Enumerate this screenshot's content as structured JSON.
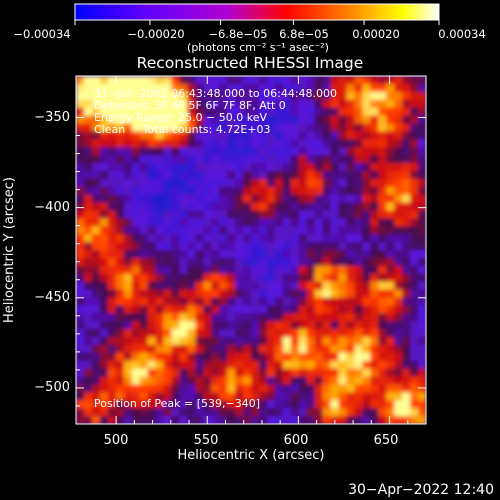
{
  "chart_data": {
    "type": "heatmap",
    "title": "Reconstructed RHESSI Image",
    "xlabel": "Heliocentric X (arcsec)",
    "ylabel": "Heliocentric Y (arcsec)",
    "xlim": [
      478,
      670
    ],
    "ylim": [
      -520,
      -327
    ],
    "x_ticks": [
      500,
      550,
      600,
      650
    ],
    "x_tick_labels": [
      "500",
      "550",
      "600",
      "650"
    ],
    "y_ticks": [
      -350,
      -400,
      -450,
      -500
    ],
    "y_tick_labels": [
      "−350",
      "−400",
      "−450",
      "−500"
    ],
    "colorbar": {
      "range": [
        -0.00034,
        0.00034
      ],
      "tick_values": [
        -0.00034,
        -0.0002,
        -6.8e-05,
        6.8e-05,
        0.0002,
        0.00034
      ],
      "tick_labels": [
        "−0.00034",
        "−0.00020",
        "−6.8e−05",
        "6.8e−05",
        "0.00020",
        "0.00034"
      ],
      "unit_label": "(photons cm⁻² s⁻¹ asec⁻²)",
      "colors": [
        "#0000ff",
        "#5a00ff",
        "#b000d0",
        "#ff0000",
        "#ff8000",
        "#ffff00",
        "#ffffff"
      ]
    },
    "annotations": [
      "31−Jul−2002 06:43:48.000 to 06:44:48.000",
      "Detectors: 3F 4F 5F 6F 7F 8F, Att 0",
      "Energy Range: 25.0 − 50.0 keV",
      "Clean     Total counts: 4.72E+03"
    ],
    "peak_label": "Position of Peak = [539,−340]",
    "peak": [
      539,
      -340
    ],
    "grid": false,
    "legend": "none"
  },
  "footer": {
    "timestamp": "30−Apr−2022 12:40"
  }
}
